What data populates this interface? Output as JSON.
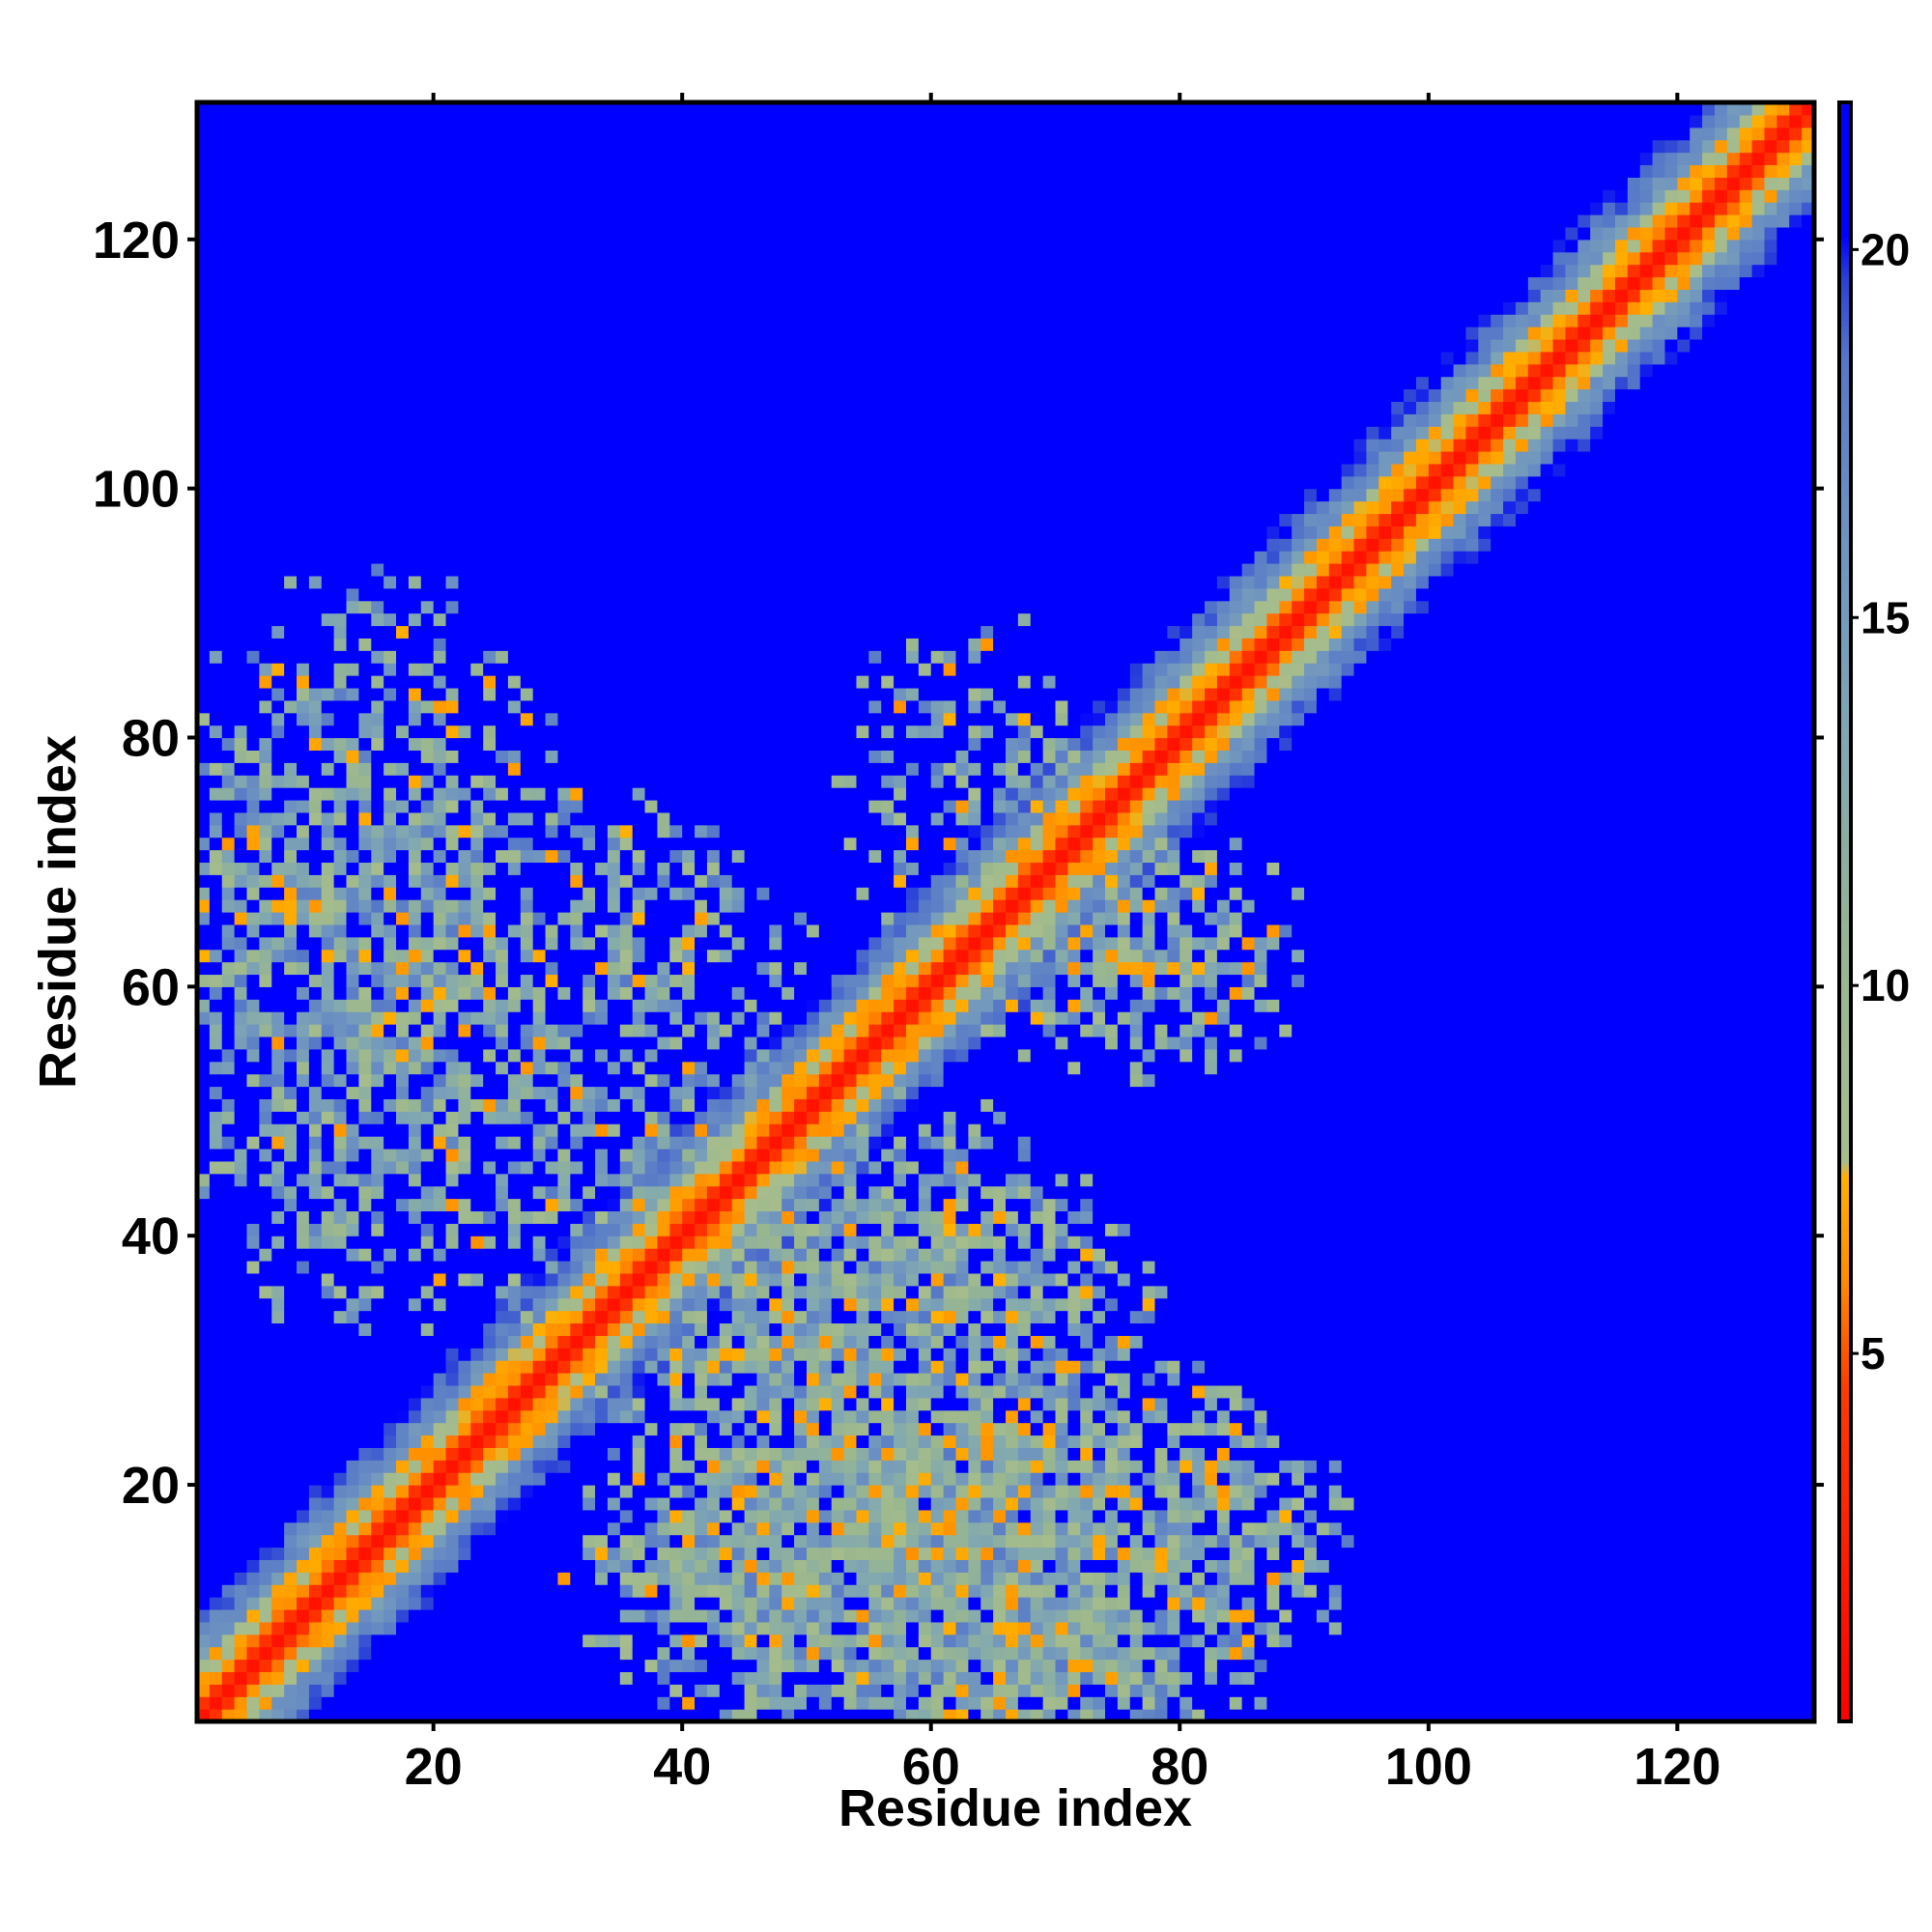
{
  "chart_data": {
    "type": "heatmap",
    "title": "",
    "xlabel": "Residue index",
    "ylabel": "Residue index",
    "xlim": [
      1,
      130
    ],
    "ylim": [
      1,
      130
    ],
    "xticks": [
      20,
      40,
      60,
      80,
      100,
      120
    ],
    "yticks": [
      20,
      40,
      60,
      80,
      100,
      120
    ],
    "colorbar": {
      "range": [
        0,
        22
      ],
      "ticks": [
        5,
        10,
        15,
        20
      ],
      "stops": [
        {
          "value": 0,
          "color": "#ff0000"
        },
        {
          "value": 4.5,
          "color": "#ff3a00"
        },
        {
          "value": 6.0,
          "color": "#ff8c00"
        },
        {
          "value": 7.4,
          "color": "#ffb000"
        },
        {
          "value": 7.6,
          "color": "#a8bd8c"
        },
        {
          "value": 10,
          "color": "#9ab78e"
        },
        {
          "value": 13,
          "color": "#82a9b0"
        },
        {
          "value": 16,
          "color": "#6f94c0"
        },
        {
          "value": 18.5,
          "color": "#5678c8"
        },
        {
          "value": 19.6,
          "color": "#2a40d8"
        },
        {
          "value": 20.2,
          "color": "#0000ff"
        },
        {
          "value": 22,
          "color": "#0000ff"
        }
      ]
    },
    "colors": {
      "high": "#0000ff",
      "mid": "#9ab78e",
      "low": "#ff0000"
    },
    "n_residues": 130,
    "description_values": "Symmetric residue-residue distance map: value near 0 on the diagonal, rising with |i-j|; off-diagonal contact regions near x 1-30/y 40-90, x 40-85/y 1-35, x 40-90/y 40-95; saturated blue (>=20) elsewhere."
  }
}
